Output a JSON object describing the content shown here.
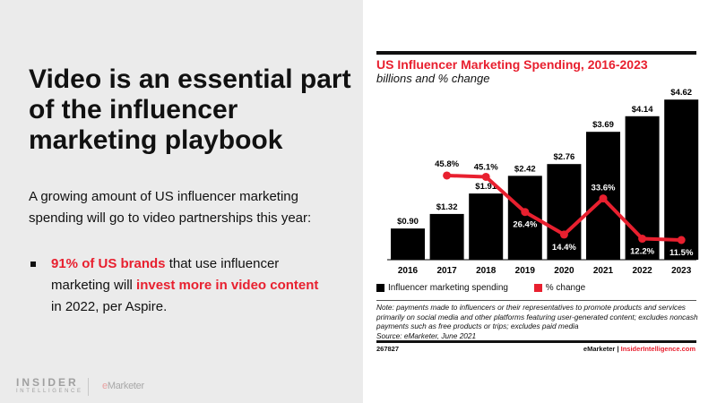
{
  "slide": {
    "headline": "Video is an essential part of the influencer marketing playbook",
    "intro": "A growing amount of US influencer marketing spending will go to video partnerships this year:",
    "bullet": {
      "part1": "91% of US brands",
      "part2": " that use influencer marketing will ",
      "part3": "invest more in video content",
      "part4": " in 2022, per Aspire."
    },
    "logo": {
      "line1": "INSIDER",
      "line2": "INTELLIGENCE",
      "emarketer_e": "e",
      "emarketer_rest": "Marketer"
    }
  },
  "chart_data": {
    "type": "bar+line",
    "title": "US Influencer Marketing Spending, 2016-2023",
    "subtitle": "billions and % change",
    "categories": [
      "2016",
      "2017",
      "2018",
      "2019",
      "2020",
      "2021",
      "2022",
      "2023"
    ],
    "series": [
      {
        "name": "Influencer marketing spending",
        "type": "bar",
        "color": "#000000",
        "values": [
          0.9,
          1.32,
          1.91,
          2.42,
          2.76,
          3.69,
          4.14,
          4.62
        ],
        "labels": [
          "$0.90",
          "$1.32",
          "$1.91",
          "$2.42",
          "$2.76",
          "$3.69",
          "$4.14",
          "$4.62"
        ]
      },
      {
        "name": "% change",
        "type": "line",
        "color": "#e8202f",
        "values": [
          null,
          45.8,
          45.1,
          26.4,
          14.4,
          33.6,
          12.2,
          11.5
        ],
        "labels": [
          "",
          "45.8%",
          "45.1%",
          "26.4%",
          "14.4%",
          "33.6%",
          "12.2%",
          "11.5%"
        ]
      }
    ],
    "grid": false,
    "legend": "bottom-left"
  },
  "footer": {
    "note": "Note: payments made to influencers or their representatives to promote products and services primarily on social media and other platforms featuring user-generated content; excludes noncash payments such as free products or trips; excludes paid media",
    "source": "Source: eMarketer, June 2021",
    "code": "267827",
    "brand1": "eMarketer",
    "sep": " | ",
    "brand2": "InsiderIntelligence.com"
  }
}
